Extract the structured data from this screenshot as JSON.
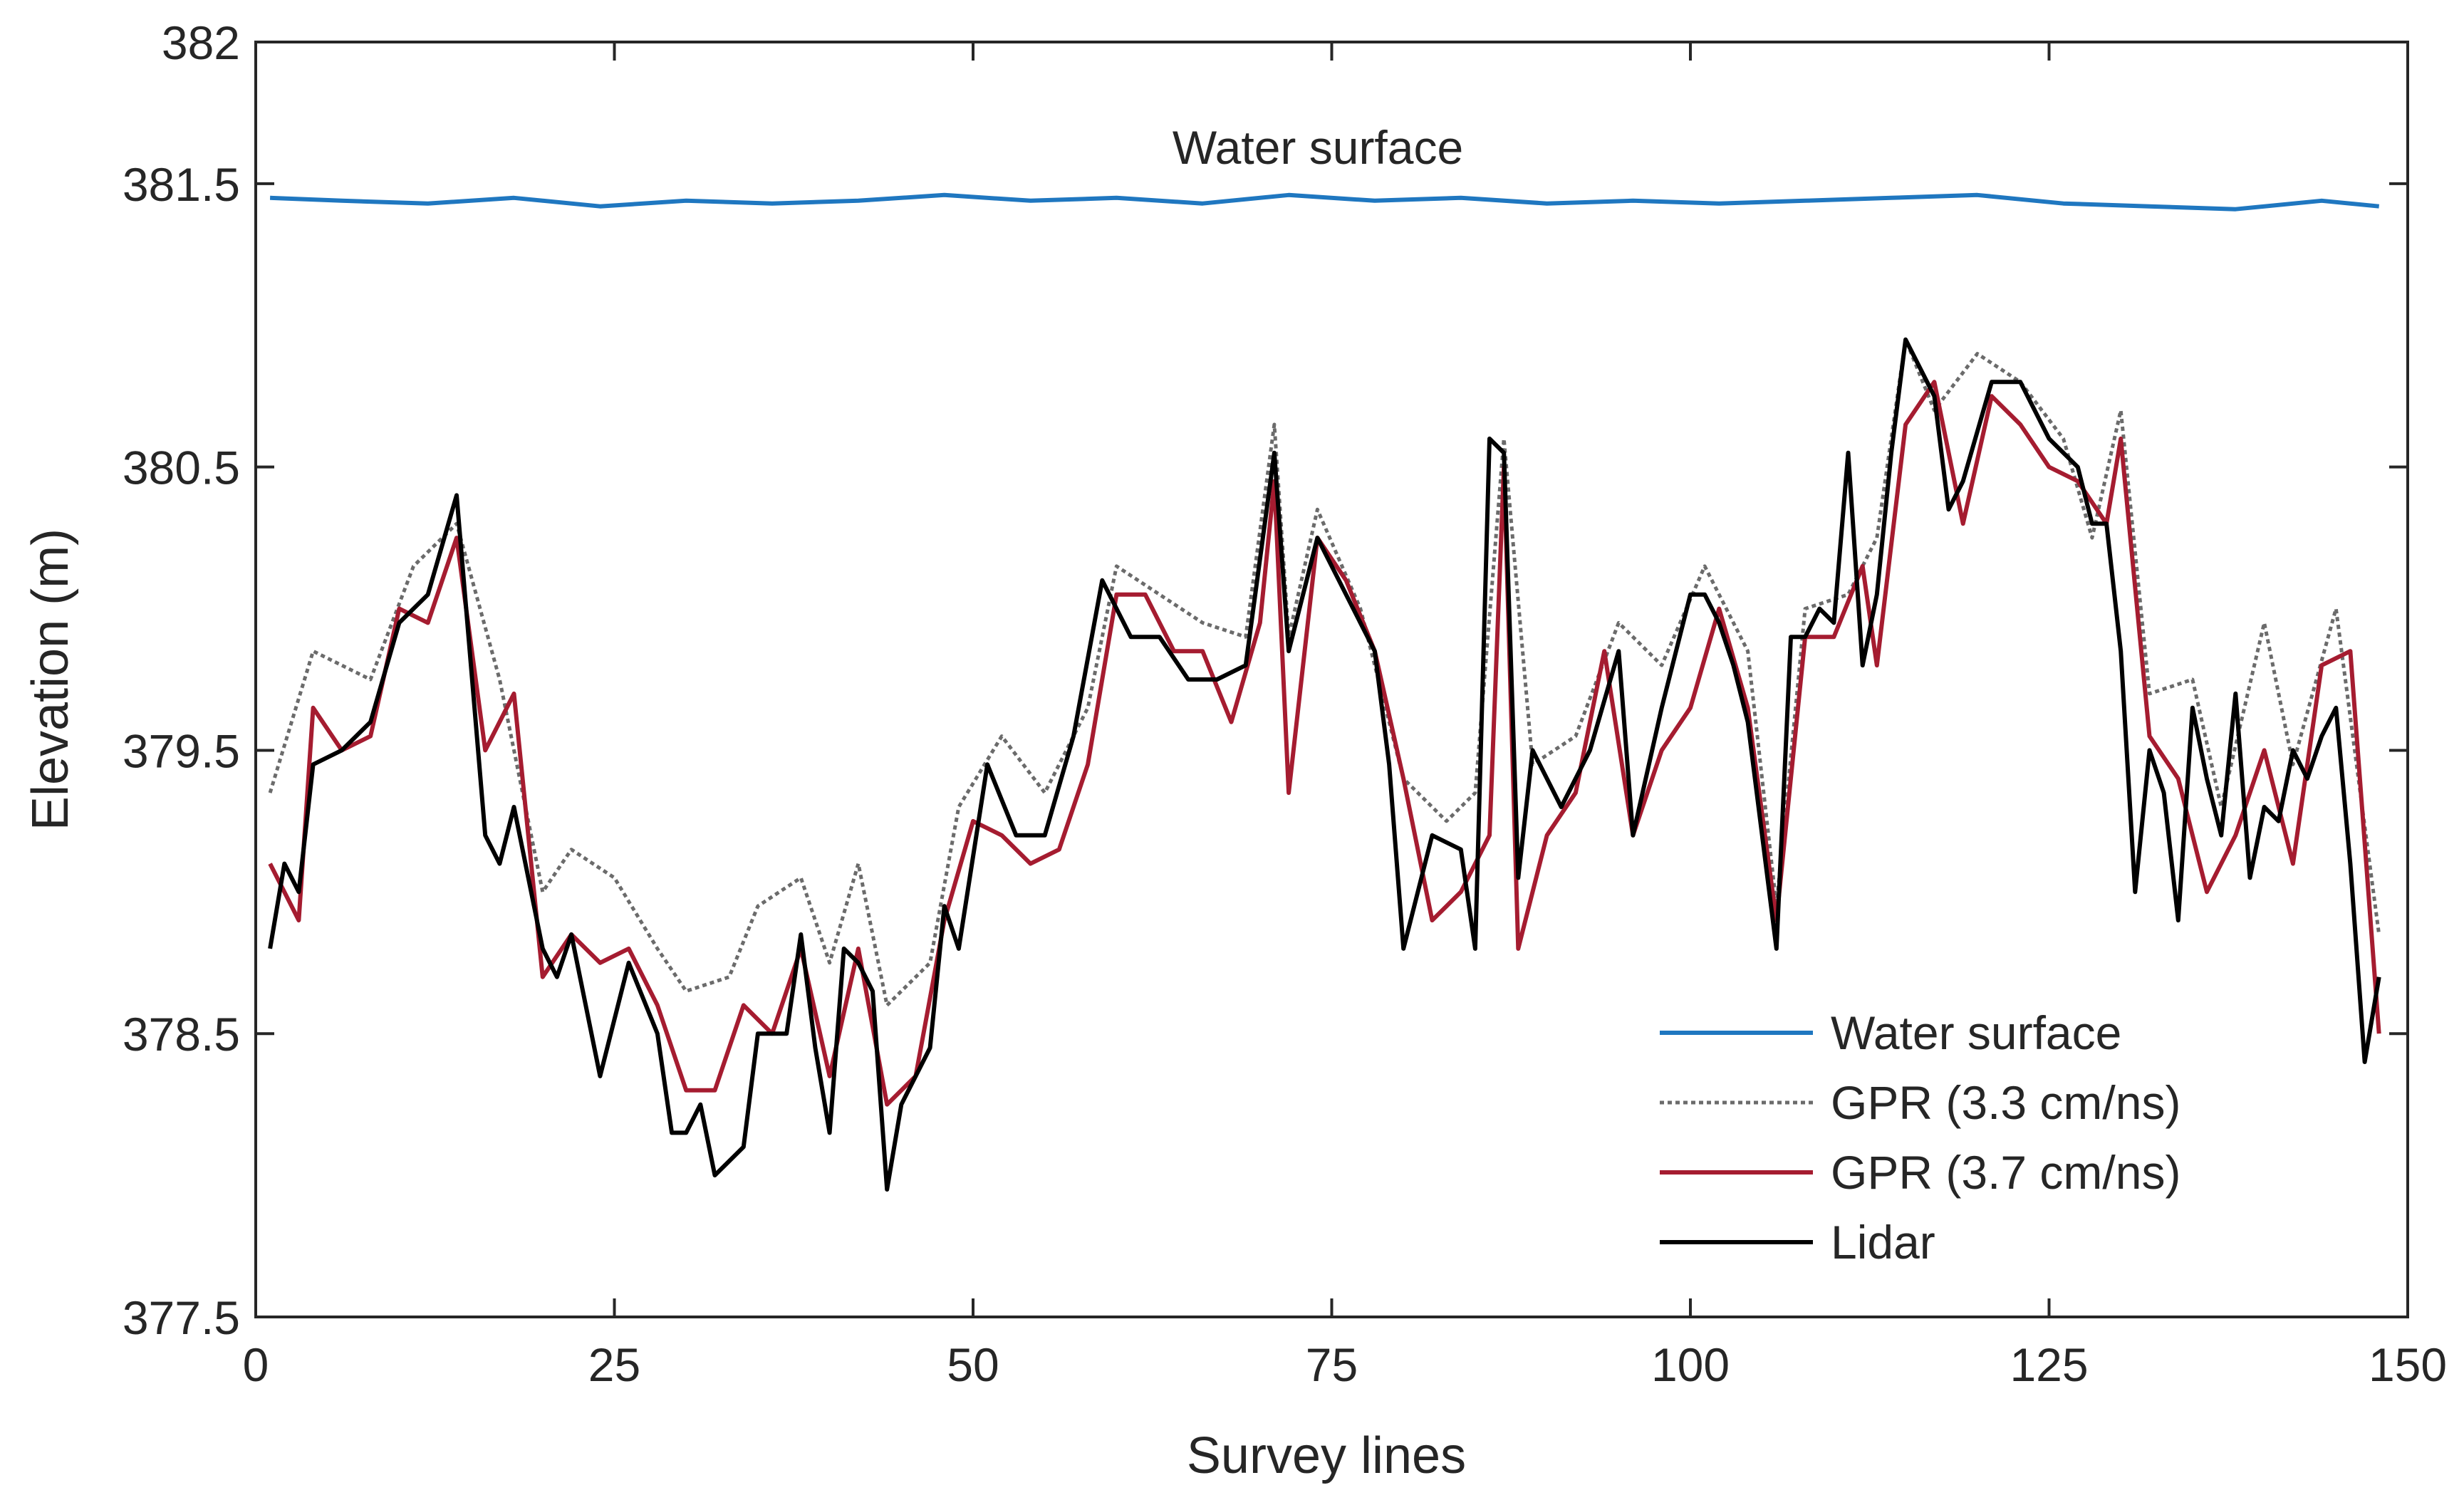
{
  "chart_data": {
    "type": "line",
    "title": "",
    "xlabel": "Survey lines",
    "ylabel": "Elevation (m)",
    "xlim": [
      0,
      150
    ],
    "ylim": [
      377.5,
      382
    ],
    "xticks": [
      0,
      25,
      50,
      75,
      100,
      125,
      150
    ],
    "xtick_labels": [
      "0",
      "25",
      "50",
      "75",
      "100",
      "125",
      "150"
    ],
    "yticks": [
      377.5,
      378.5,
      379.5,
      380.5,
      381.5,
      382
    ],
    "ytick_labels": [
      "377.5",
      "378.5",
      "379.5",
      "380.5",
      "381.5",
      "382"
    ],
    "grid": false,
    "legend_position": "bottom-right",
    "annotations": [
      {
        "text": "Water surface",
        "x": 74,
        "y": 381.6
      }
    ],
    "series": [
      {
        "name": "Water surface",
        "color": "#1f77c0",
        "style": "solid",
        "x": [
          1,
          6,
          12,
          18,
          24,
          30,
          36,
          42,
          48,
          54,
          60,
          66,
          72,
          78,
          84,
          90,
          96,
          102,
          108,
          114,
          120,
          126,
          132,
          138,
          144,
          148
        ],
        "y": [
          381.45,
          381.44,
          381.43,
          381.45,
          381.42,
          381.44,
          381.43,
          381.44,
          381.46,
          381.44,
          381.45,
          381.43,
          381.46,
          381.44,
          381.45,
          381.43,
          381.44,
          381.43,
          381.44,
          381.45,
          381.46,
          381.43,
          381.42,
          381.41,
          381.44,
          381.42
        ]
      },
      {
        "name": "GPR (3.3 cm/ns)",
        "color": "#6b6b6b",
        "style": "dotted",
        "x": [
          1,
          4,
          8,
          11,
          14,
          17,
          20,
          22,
          25,
          28,
          30,
          33,
          35,
          38,
          40,
          42,
          44,
          47,
          49,
          52,
          55,
          58,
          60,
          63,
          66,
          69,
          71,
          72,
          74,
          77,
          80,
          83,
          85,
          87,
          89,
          92,
          95,
          98,
          101,
          104,
          106,
          108,
          111,
          113,
          115,
          117,
          120,
          123,
          126,
          128,
          130,
          132,
          135,
          137,
          140,
          142,
          145,
          148
        ],
        "y": [
          379.35,
          379.85,
          379.75,
          380.15,
          380.3,
          379.75,
          379.0,
          379.15,
          379.05,
          378.8,
          378.65,
          378.7,
          378.95,
          379.05,
          378.75,
          379.1,
          378.6,
          378.75,
          379.3,
          379.55,
          379.35,
          379.65,
          380.15,
          380.05,
          379.95,
          379.9,
          380.65,
          379.9,
          380.35,
          380.0,
          379.4,
          379.25,
          379.35,
          380.6,
          379.45,
          379.55,
          379.95,
          379.8,
          380.15,
          379.85,
          378.95,
          380.0,
          380.05,
          380.25,
          380.95,
          380.7,
          380.9,
          380.8,
          380.6,
          380.25,
          380.7,
          379.7,
          379.75,
          379.3,
          379.95,
          379.45,
          380.0,
          378.85
        ]
      },
      {
        "name": "GPR (3.7 cm/ns)",
        "color": "#a51c30",
        "style": "solid",
        "x": [
          1,
          3,
          4,
          6,
          8,
          10,
          12,
          14,
          16,
          18,
          20,
          22,
          24,
          26,
          28,
          30,
          32,
          34,
          36,
          38,
          40,
          42,
          44,
          46,
          48,
          50,
          52,
          54,
          56,
          58,
          60,
          62,
          64,
          66,
          68,
          70,
          71,
          72,
          74,
          76,
          78,
          80,
          82,
          84,
          86,
          87,
          88,
          90,
          92,
          94,
          96,
          98,
          100,
          102,
          104,
          106,
          108,
          110,
          112,
          113,
          115,
          117,
          119,
          121,
          123,
          125,
          127,
          129,
          130,
          132,
          134,
          136,
          138,
          140,
          142,
          144,
          146,
          148
        ],
        "y": [
          379.1,
          378.9,
          379.65,
          379.5,
          379.55,
          380.0,
          379.95,
          380.25,
          379.5,
          379.7,
          378.7,
          378.85,
          378.75,
          378.8,
          378.6,
          378.3,
          378.3,
          378.6,
          378.5,
          378.8,
          378.35,
          378.8,
          378.25,
          378.35,
          378.9,
          379.25,
          379.2,
          379.1,
          379.15,
          379.45,
          380.05,
          380.05,
          379.85,
          379.85,
          379.6,
          379.95,
          380.45,
          379.35,
          380.25,
          380.1,
          379.85,
          379.4,
          378.9,
          379.0,
          379.2,
          380.5,
          378.8,
          379.2,
          379.35,
          379.85,
          379.2,
          379.5,
          379.65,
          380.0,
          379.65,
          378.9,
          379.9,
          379.9,
          380.15,
          379.8,
          380.65,
          380.8,
          380.3,
          380.75,
          380.65,
          380.5,
          380.45,
          380.3,
          380.6,
          379.55,
          379.4,
          379.0,
          379.2,
          379.5,
          379.1,
          379.8,
          379.85,
          378.5
        ]
      },
      {
        "name": "Lidar",
        "color": "#000000",
        "style": "solid",
        "x": [
          1,
          2,
          3,
          4,
          6,
          8,
          10,
          12,
          14,
          16,
          17,
          18,
          20,
          21,
          22,
          24,
          26,
          28,
          29,
          30,
          31,
          32,
          34,
          35,
          37,
          38,
          39,
          40,
          41,
          42,
          43,
          44,
          45,
          47,
          48,
          49,
          51,
          53,
          55,
          57,
          59,
          61,
          63,
          65,
          67,
          69,
          71,
          72,
          74,
          76,
          78,
          79,
          80,
          82,
          84,
          85,
          86,
          87,
          88,
          89,
          91,
          93,
          95,
          96,
          98,
          100,
          101,
          102,
          103,
          104,
          106,
          107,
          108,
          109,
          110,
          111,
          112,
          113,
          114,
          115,
          116,
          117,
          118,
          119,
          121,
          123,
          125,
          126,
          127,
          128,
          129,
          130,
          131,
          132,
          133,
          134,
          135,
          136,
          137,
          138,
          139,
          140,
          141,
          142,
          143,
          144,
          145,
          146,
          147,
          148
        ],
        "y": [
          378.8,
          379.1,
          379.0,
          379.45,
          379.5,
          379.6,
          379.95,
          380.05,
          380.4,
          379.2,
          379.1,
          379.3,
          378.8,
          378.7,
          378.85,
          378.35,
          378.75,
          378.5,
          378.15,
          378.15,
          378.25,
          378.0,
          378.1,
          378.5,
          378.5,
          378.85,
          378.45,
          378.15,
          378.8,
          378.75,
          378.65,
          377.95,
          378.25,
          378.45,
          378.95,
          378.8,
          379.45,
          379.2,
          379.2,
          379.55,
          380.1,
          379.9,
          379.9,
          379.75,
          379.75,
          379.8,
          380.55,
          379.85,
          380.25,
          380.05,
          379.85,
          379.45,
          378.8,
          379.2,
          379.15,
          378.8,
          380.6,
          380.55,
          379.05,
          379.5,
          379.3,
          379.5,
          379.85,
          379.2,
          379.65,
          380.05,
          380.05,
          379.95,
          379.8,
          379.6,
          378.8,
          379.9,
          379.9,
          380.0,
          379.95,
          380.55,
          379.8,
          380.05,
          380.55,
          380.95,
          380.85,
          380.75,
          380.35,
          380.45,
          380.8,
          380.8,
          380.6,
          380.55,
          380.5,
          380.3,
          380.3,
          379.85,
          379.0,
          379.5,
          379.35,
          378.9,
          379.65,
          379.4,
          379.2,
          379.7,
          379.05,
          379.3,
          379.25,
          379.5,
          379.4,
          379.55,
          379.65,
          379.1,
          378.4,
          378.7
        ]
      }
    ]
  }
}
